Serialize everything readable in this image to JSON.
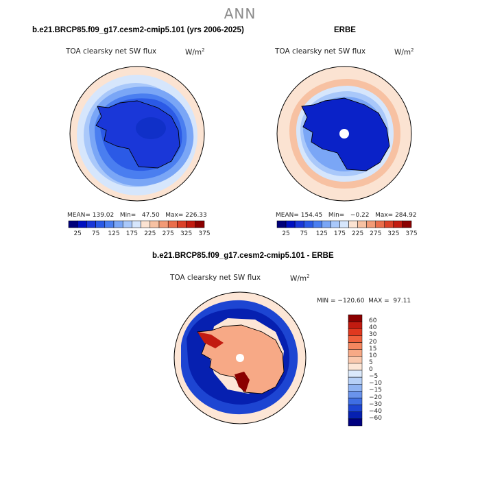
{
  "page_title": "ANN",
  "panels": [
    {
      "case_title": "b.e21.BRCP85.f09_g17.cesm2-cmip5.101 (yrs 2006-2025)",
      "variable": "TOA clearsky net SW flux",
      "units": "W/m",
      "units_sup": "2",
      "stats": "MEAN= 139.02   Min=   47.50   Max= 226.33"
    },
    {
      "case_title": "ERBE",
      "variable": "TOA clearsky net SW flux",
      "units": "W/m",
      "units_sup": "2",
      "stats": "MEAN= 154.45   Min=   −0.22   Max= 284.92"
    },
    {
      "case_title": "b.e21.BRCP85.f09_g17.cesm2-cmip5.101 - ERBE",
      "variable": "TOA clearsky net SW flux",
      "units": "W/m",
      "units_sup": "2",
      "stats": "MIN = −120.60  MAX =  97.11"
    }
  ],
  "colorbar_abs": {
    "colors": [
      "#00007a",
      "#0010c0",
      "#1a37d8",
      "#2b5ae6",
      "#4a7ef0",
      "#7aa6f6",
      "#a9c8fa",
      "#d6e6fc",
      "#fbe3d2",
      "#f7c1a2",
      "#f29a76",
      "#ea6e4c",
      "#db4128",
      "#c21b10",
      "#8b0000"
    ],
    "labels": [
      "25",
      "75",
      "125",
      "175",
      "225",
      "275",
      "325",
      "375"
    ]
  },
  "colorbar_diff": {
    "colors": [
      "#8b0000",
      "#c21b10",
      "#e0381f",
      "#f0603c",
      "#f5875f",
      "#f7a986",
      "#fac8ad",
      "#fde6d6",
      "#dbe9fb",
      "#b6d0f7",
      "#8fb3f2",
      "#6a93ec",
      "#3f6ee3",
      "#1d45d2",
      "#0620b0",
      "#000080"
    ],
    "labels": [
      "60",
      "40",
      "30",
      "20",
      "15",
      "10",
      "5",
      "0",
      "−5",
      "−10",
      "−15",
      "−20",
      "−30",
      "−40",
      "−60"
    ]
  }
}
